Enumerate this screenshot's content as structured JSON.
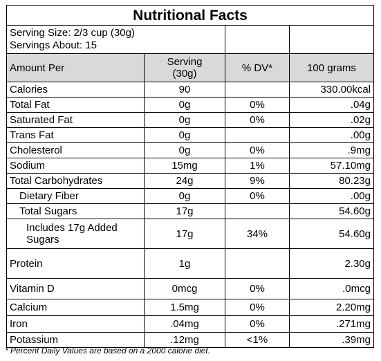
{
  "title": "Nutritional Facts",
  "serving_size": "Serving Size: 2/3 cup (30g)",
  "servings": "Servings About: 15",
  "headers": {
    "amount": "Amount Per",
    "serving_line1": "Serving",
    "serving_line2": "(30g)",
    "dv": "% DV*",
    "per100": "100 grams"
  },
  "rows": [
    {
      "name": "Calories",
      "serving": "90",
      "dv": "",
      "per100": "330.00kcal"
    },
    {
      "name": "Total Fat",
      "serving": "0g",
      "dv": "0%",
      "per100": ".04g"
    },
    {
      "name": "Saturated Fat",
      "serving": "0g",
      "dv": "0%",
      "per100": ".02g"
    },
    {
      "name": "Trans Fat",
      "serving": "0g",
      "dv": "",
      "per100": ".00g"
    },
    {
      "name": "Cholesterol",
      "serving": "0g",
      "dv": "0%",
      "per100": ".9mg"
    },
    {
      "name": "Sodium",
      "serving": "15mg",
      "dv": "1%",
      "per100": "57.10mg"
    },
    {
      "name": "Total Carbohydrates",
      "serving": "24g",
      "dv": "9%",
      "per100": "80.23g"
    },
    {
      "name": "Dietary Fiber",
      "serving": "0g",
      "dv": "0%",
      "per100": ".00g"
    },
    {
      "name": "Total Sugars",
      "serving": "17g",
      "dv": "",
      "per100": "54.60g"
    },
    {
      "name_line1": "Includes 17g Added",
      "name_line2": "Sugars",
      "serving": "17g",
      "dv": "34%",
      "per100": "54.60g"
    },
    {
      "name": "Protein",
      "serving": "1g",
      "dv": "",
      "per100": "2.30g"
    },
    {
      "name": "Vitamin D",
      "serving": "0mcg",
      "dv": "0%",
      "per100": ".0mcg"
    },
    {
      "name": "Calcium",
      "serving": "1.5mg",
      "dv": "0%",
      "per100": "2.20mg"
    },
    {
      "name": "Iron",
      "serving": ".04mg",
      "dv": "0%",
      "per100": ".271mg"
    },
    {
      "name": "Potassium",
      "serving": ".12mg",
      "dv": "<1%",
      "per100": ".39mg"
    }
  ],
  "footnote": "* Percent Daily Values are based on a 2000 calorie diet."
}
